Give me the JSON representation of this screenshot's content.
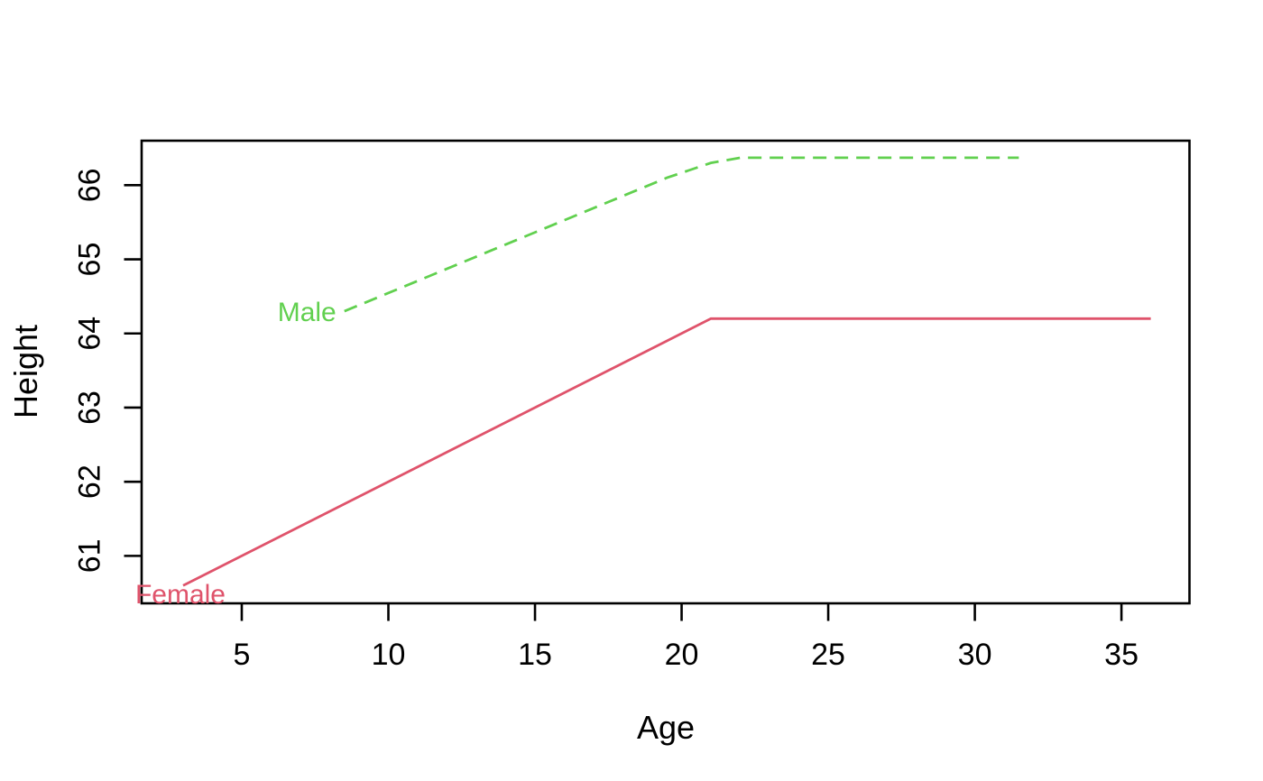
{
  "chart_data": {
    "type": "line",
    "title": "",
    "xlabel": "Age",
    "ylabel": "Height",
    "xlim": [
      1.585,
      37.32
    ],
    "ylim": [
      60.36,
      66.6
    ],
    "xticks": [
      5,
      10,
      15,
      20,
      25,
      30,
      35
    ],
    "yticks": [
      61,
      62,
      63,
      64,
      65,
      66
    ],
    "grid": false,
    "legend": "inline-labels",
    "background_color": "#ffffff",
    "axis_color": "#000000",
    "series": [
      {
        "name": "Female",
        "color": "#DF536B",
        "line_style": "solid",
        "points": [
          [
            3,
            60.6
          ],
          [
            21,
            64.2
          ],
          [
            36,
            64.2
          ]
        ],
        "label": {
          "text": "Female",
          "x": 3,
          "y": 60.6,
          "position": "below"
        }
      },
      {
        "name": "Male",
        "color": "#61D04F",
        "line_style": "dashed",
        "points": [
          [
            8.5,
            64.3
          ],
          [
            19.5,
            66.1
          ],
          [
            21,
            66.3
          ],
          [
            22,
            66.37
          ],
          [
            31.5,
            66.37
          ]
        ],
        "label": {
          "text": "Male",
          "x": 8.5,
          "y": 64.3,
          "position": "left"
        }
      }
    ]
  }
}
